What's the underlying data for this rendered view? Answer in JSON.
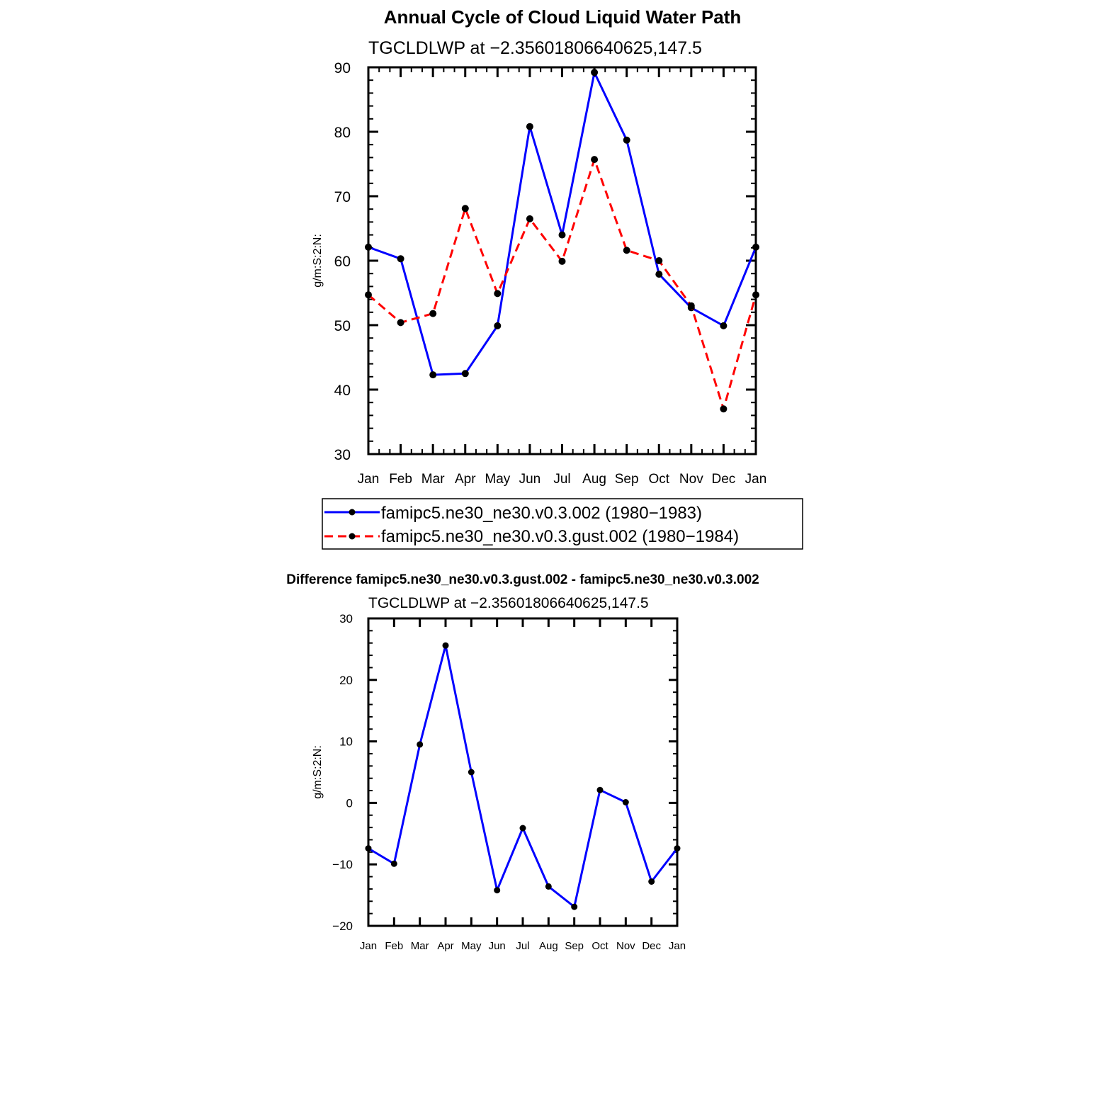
{
  "chart_data": [
    {
      "type": "line",
      "title": "Annual Cycle of Cloud Liquid Water Path",
      "subtitle": "TGCLDLWP at −2.35601806640625,147.5",
      "xlabel": "",
      "ylabel": "g/m:S:2:N:",
      "categories": [
        "Jan",
        "Feb",
        "Mar",
        "Apr",
        "May",
        "Jun",
        "Jul",
        "Aug",
        "Sep",
        "Oct",
        "Nov",
        "Dec",
        "Jan"
      ],
      "ylim": [
        30,
        90
      ],
      "yticks": [
        "30",
        "40",
        "50",
        "60",
        "70",
        "80",
        "90"
      ],
      "grid": false,
      "legend": "below",
      "series": [
        {
          "name": "famipc5.ne30_ne30.v0.3.002 (1980−1983)",
          "color": "#0000ff",
          "dash": "solid",
          "values": [
            62.1,
            60.3,
            42.3,
            42.5,
            49.9,
            80.8,
            64.0,
            89.2,
            78.7,
            57.9,
            52.7,
            49.9,
            62.1
          ]
        },
        {
          "name": "famipc5.ne30_ne30.v0.3.gust.002 (1980−1984)",
          "color": "#ff0000",
          "dash": "dashed",
          "values": [
            54.7,
            50.4,
            51.8,
            68.1,
            54.9,
            66.5,
            59.9,
            75.7,
            61.6,
            60.0,
            53.0,
            37.0,
            54.7
          ]
        }
      ]
    },
    {
      "type": "line",
      "title": "Difference famipc5.ne30_ne30.v0.3.gust.002 - famipc5.ne30_ne30.v0.3.002",
      "subtitle": "TGCLDLWP at −2.35601806640625,147.5",
      "xlabel": "",
      "ylabel": "g/m:S:2:N:",
      "categories": [
        "Jan",
        "Feb",
        "Mar",
        "Apr",
        "May",
        "Jun",
        "Jul",
        "Aug",
        "Sep",
        "Oct",
        "Nov",
        "Dec",
        "Jan"
      ],
      "ylim": [
        -20,
        30
      ],
      "yticks": [
        "−20",
        "−10",
        "0",
        "10",
        "20",
        "30"
      ],
      "grid": false,
      "series": [
        {
          "color": "#0000ff",
          "dash": "solid",
          "values": [
            -7.4,
            -9.9,
            9.5,
            25.6,
            5.0,
            -14.2,
            -4.1,
            -13.6,
            -16.9,
            2.1,
            0.1,
            -12.8,
            -7.4
          ]
        }
      ]
    }
  ]
}
